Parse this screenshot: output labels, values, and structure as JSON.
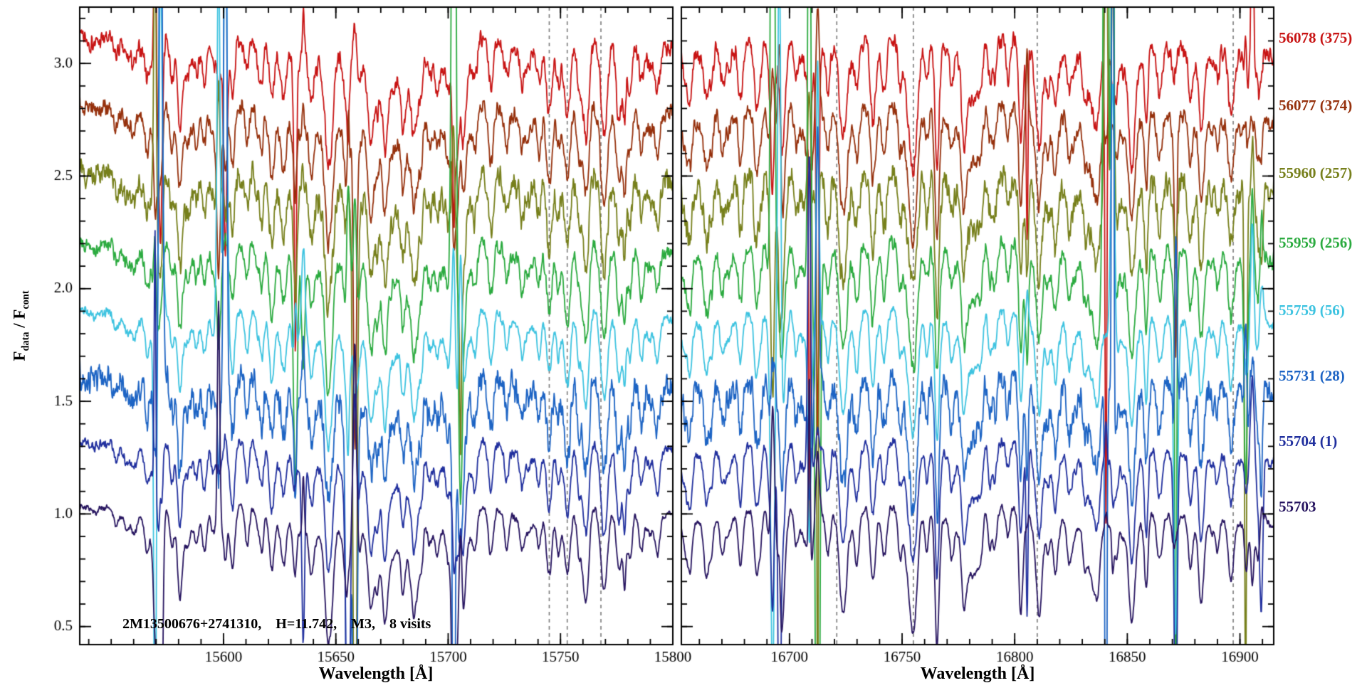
{
  "chart_data": {
    "type": "line",
    "xlabel": "Wavelength [Å]",
    "ylabel": "F_data / F_cont",
    "ylabel_parts": {
      "f1": "F",
      "sub1": "data",
      "mid": " / F",
      "sub2": "cont"
    },
    "annotation": "2M13500676+2741310,    H=11.742,    M3,    8 visits",
    "ylim": [
      0.42,
      3.25
    ],
    "y_ticks": [
      0.5,
      1.0,
      1.5,
      2.0,
      2.5,
      3.0
    ],
    "y_minor_step": 0.1,
    "x_minor_step": 10,
    "legend_position": "right",
    "grid": false,
    "panels": [
      {
        "xlim": [
          15536,
          15800
        ],
        "x_ticks": [
          15600,
          15650,
          15700,
          15750,
          15800
        ],
        "dashed_lines": [
          15745,
          15753,
          15768
        ],
        "airglow": [
          15569.5,
          15572,
          15597.8,
          15600.8,
          15632,
          15635.5,
          15655.5,
          15658.5,
          15702.5,
          15705.5
        ],
        "strong_lines": [
          [
            15566,
            0.15,
            1.0
          ],
          [
            15570.8,
            0.22,
            1.2
          ],
          [
            15577,
            0.15,
            0.9
          ],
          [
            15580.5,
            0.26,
            1.0
          ],
          [
            15588,
            0.14,
            0.9
          ],
          [
            15591.5,
            0.2,
            1.1
          ],
          [
            15598,
            0.16,
            0.9
          ],
          [
            15604,
            0.24,
            1.0
          ],
          [
            15610.5,
            0.16,
            0.9
          ],
          [
            15617,
            0.14,
            1.0
          ],
          [
            15621.5,
            0.28,
            1.2
          ],
          [
            15627,
            0.2,
            1.0
          ],
          [
            15631.5,
            0.16,
            0.9
          ],
          [
            15639,
            0.18,
            1.0
          ],
          [
            15648,
            0.16,
            1.1
          ],
          [
            15655,
            0.22,
            1.0
          ],
          [
            15660,
            0.14,
            0.9
          ],
          [
            15665.5,
            0.3,
            1.2
          ],
          [
            15672,
            0.22,
            1.0
          ],
          [
            15680,
            0.18,
            1.0
          ],
          [
            15686,
            0.13,
            0.9
          ],
          [
            15695,
            0.16,
            1.0
          ],
          [
            15700,
            0.14,
            0.9
          ],
          [
            15705.5,
            0.2,
            1.0
          ],
          [
            15712,
            0.13,
            0.9
          ],
          [
            15719,
            0.23,
            1.1
          ],
          [
            15726,
            0.16,
            1.0
          ],
          [
            15733,
            0.13,
            0.9
          ],
          [
            15740.5,
            0.18,
            1.0
          ],
          [
            15745,
            0.3,
            1.3
          ],
          [
            15749,
            0.18,
            0.9
          ],
          [
            15753,
            0.33,
            1.4
          ],
          [
            15758,
            0.16,
            0.9
          ],
          [
            15762,
            0.2,
            1.0
          ],
          [
            15769.5,
            0.38,
            1.5
          ],
          [
            15776,
            0.3,
            1.2
          ],
          [
            15781,
            0.16,
            0.9
          ],
          [
            15786,
            0.18,
            1.0
          ],
          [
            15793,
            0.14,
            0.9
          ]
        ]
      },
      {
        "xlim": [
          16652,
          16915
        ],
        "x_ticks": [
          16700,
          16750,
          16800,
          16850,
          16900
        ],
        "dashed_lines": [
          16721,
          16755,
          16810,
          16897
        ],
        "airglow": [
          16692.5,
          16695.5,
          16708.8,
          16712.5,
          16805.5,
          16840.5,
          16843.5,
          16871.5,
          16902.5,
          16905.5,
          16909.5
        ],
        "strong_lines": [
          [
            16656,
            0.14,
            0.9
          ],
          [
            16663,
            0.16,
            1.0
          ],
          [
            16670,
            0.13,
            0.9
          ],
          [
            16678,
            0.15,
            1.0
          ],
          [
            16685,
            0.18,
            1.0
          ],
          [
            16691,
            0.14,
            0.9
          ],
          [
            16696,
            0.18,
            1.0
          ],
          [
            16703,
            0.15,
            0.9
          ],
          [
            16709.5,
            0.26,
            1.2
          ],
          [
            16717,
            0.2,
            1.0
          ],
          [
            16723.5,
            0.3,
            1.3
          ],
          [
            16730,
            0.16,
            0.9
          ],
          [
            16737,
            0.15,
            1.0
          ],
          [
            16742,
            0.22,
            1.1
          ],
          [
            16749,
            0.16,
            0.9
          ],
          [
            16755,
            0.4,
            1.8
          ],
          [
            16761,
            0.18,
            0.9
          ],
          [
            16765.5,
            0.22,
            1.1
          ],
          [
            16772,
            0.14,
            0.9
          ],
          [
            16778,
            0.16,
            1.0
          ],
          [
            16785,
            0.13,
            0.9
          ],
          [
            16791,
            0.18,
            1.0
          ],
          [
            16797,
            0.14,
            0.9
          ],
          [
            16803,
            0.2,
            1.1
          ],
          [
            16811,
            0.26,
            1.2
          ],
          [
            16818,
            0.15,
            0.9
          ],
          [
            16824,
            0.14,
            1.0
          ],
          [
            16831,
            0.16,
            0.9
          ],
          [
            16837,
            0.18,
            1.0
          ],
          [
            16845,
            0.14,
            0.9
          ],
          [
            16852,
            0.2,
            1.1
          ],
          [
            16858,
            0.14,
            0.9
          ],
          [
            16864,
            0.16,
            1.0
          ],
          [
            16871,
            0.18,
            1.0
          ],
          [
            16878,
            0.13,
            0.9
          ],
          [
            16884,
            0.16,
            1.0
          ],
          [
            16890,
            0.14,
            0.9
          ],
          [
            16896,
            0.22,
            1.2
          ],
          [
            16903,
            0.16,
            0.9
          ],
          [
            16908,
            0.18,
            1.0
          ]
        ]
      }
    ],
    "series": [
      {
        "label": "56078 (375)",
        "offset": 3.11,
        "color": "#c81414",
        "noise": 0.032,
        "spike": 0.9
      },
      {
        "label": "56077 (374)",
        "offset": 2.81,
        "color": "#96310d",
        "noise": 0.03,
        "spike": 0.7
      },
      {
        "label": "55960 (257)",
        "offset": 2.51,
        "color": "#77801c",
        "noise": 0.045,
        "spike": 1.3
      },
      {
        "label": "55959 (256)",
        "offset": 2.2,
        "color": "#2cab40",
        "noise": 0.028,
        "spike": 2.4
      },
      {
        "label": "55759 (56)",
        "offset": 1.9,
        "color": "#3dc3e0",
        "noise": 0.018,
        "spike": 0.9
      },
      {
        "label": "55731 (28)",
        "offset": 1.61,
        "color": "#1d64c4",
        "noise": 0.048,
        "spike": 1.8
      },
      {
        "label": "55704 (1)",
        "offset": 1.32,
        "color": "#202f9e",
        "noise": 0.018,
        "spike": 0.8
      },
      {
        "label": "55703",
        "offset": 1.03,
        "color": "#271560",
        "noise": 0.012,
        "spike": 0.5
      }
    ],
    "gen": {
      "samples": 1300,
      "random_lines": 70,
      "broad_lines": 6
    },
    "frame_color": "#000000",
    "dashed_line_color": "#7a7a7a"
  }
}
